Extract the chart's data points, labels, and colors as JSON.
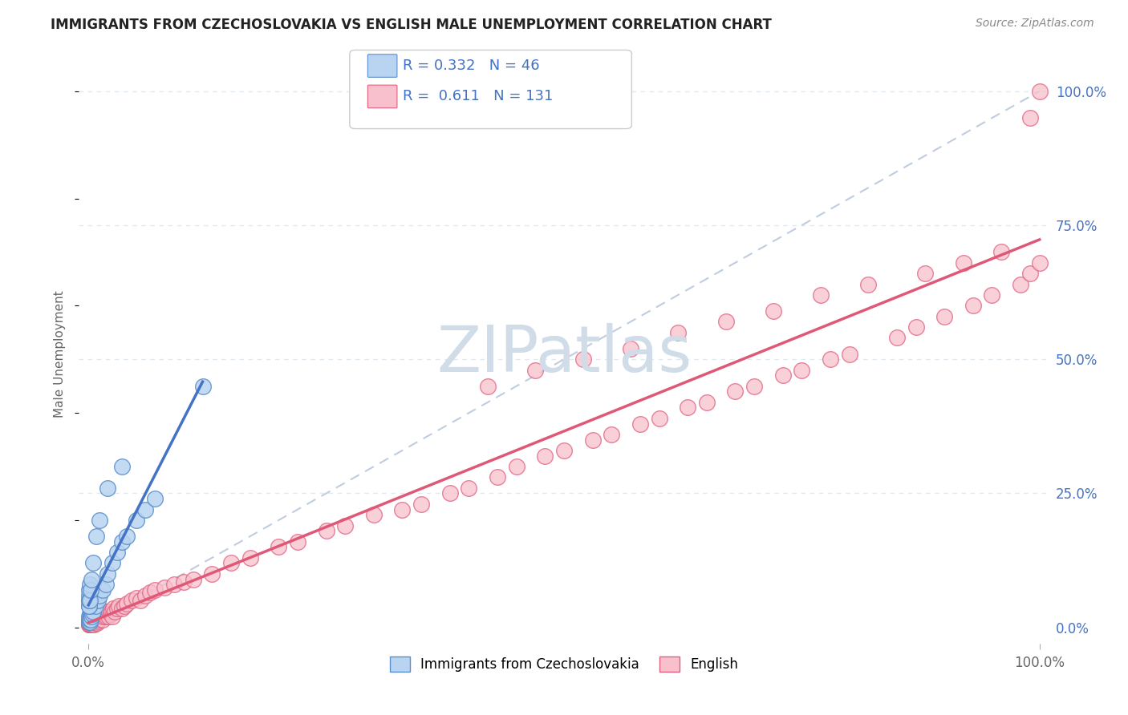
{
  "title": "IMMIGRANTS FROM CZECHOSLOVAKIA VS ENGLISH MALE UNEMPLOYMENT CORRELATION CHART",
  "source": "Source: ZipAtlas.com",
  "ylabel": "Male Unemployment",
  "legend1_label": "Immigrants from Czechoslovakia",
  "legend1_R": "0.332",
  "legend1_N": "46",
  "legend2_label": "English",
  "legend2_R": "0.611",
  "legend2_N": "131",
  "blue_fill": "#b8d4f0",
  "blue_edge": "#5b8fcc",
  "pink_fill": "#f8c0cc",
  "pink_edge": "#e06080",
  "blue_line": "#4472c4",
  "pink_line": "#e05878",
  "diag_color": "#c0cce0",
  "grid_color": "#e0e8f0",
  "watermark_color": "#d0dce8",
  "blue_dots_x": [
    0.05,
    0.08,
    0.1,
    0.12,
    0.15,
    0.18,
    0.2,
    0.22,
    0.25,
    0.28,
    0.3,
    0.35,
    0.4,
    0.45,
    0.5,
    0.6,
    0.7,
    0.8,
    1.0,
    1.2,
    1.5,
    1.8,
    2.0,
    2.5,
    3.0,
    3.5,
    4.0,
    5.0,
    6.0,
    7.0,
    0.05,
    0.06,
    0.07,
    0.08,
    0.09,
    0.1,
    0.12,
    0.15,
    0.2,
    0.3,
    0.5,
    0.8,
    1.2,
    2.0,
    3.5,
    12.0
  ],
  "blue_dots_y": [
    1.0,
    1.5,
    2.0,
    1.0,
    2.5,
    1.5,
    3.0,
    2.0,
    1.5,
    3.5,
    2.0,
    3.0,
    2.5,
    4.0,
    3.0,
    5.0,
    4.0,
    5.0,
    5.0,
    6.0,
    7.0,
    8.0,
    10.0,
    12.0,
    14.0,
    16.0,
    17.0,
    20.0,
    22.0,
    24.0,
    4.0,
    5.0,
    6.0,
    4.0,
    5.0,
    7.0,
    5.0,
    8.0,
    7.0,
    9.0,
    12.0,
    17.0,
    20.0,
    26.0,
    30.0,
    45.0
  ],
  "pink_dots_x": [
    0.05,
    0.06,
    0.07,
    0.08,
    0.09,
    0.1,
    0.1,
    0.12,
    0.12,
    0.13,
    0.15,
    0.15,
    0.16,
    0.18,
    0.18,
    0.2,
    0.2,
    0.22,
    0.23,
    0.25,
    0.25,
    0.28,
    0.3,
    0.3,
    0.32,
    0.35,
    0.35,
    0.38,
    0.4,
    0.4,
    0.42,
    0.45,
    0.48,
    0.5,
    0.5,
    0.52,
    0.55,
    0.58,
    0.6,
    0.65,
    0.7,
    0.72,
    0.75,
    0.78,
    0.8,
    0.85,
    0.9,
    0.95,
    1.0,
    1.1,
    1.2,
    1.3,
    1.4,
    1.5,
    1.6,
    1.7,
    1.8,
    1.9,
    2.0,
    2.1,
    2.2,
    2.3,
    2.4,
    2.5,
    2.6,
    2.8,
    3.0,
    3.2,
    3.5,
    3.8,
    4.0,
    4.5,
    5.0,
    5.5,
    6.0,
    6.5,
    7.0,
    8.0,
    9.0,
    10.0,
    11.0,
    13.0,
    15.0,
    17.0,
    20.0,
    22.0,
    25.0,
    27.0,
    30.0,
    33.0,
    35.0,
    38.0,
    40.0,
    43.0,
    45.0,
    48.0,
    50.0,
    53.0,
    55.0,
    58.0,
    60.0,
    63.0,
    65.0,
    68.0,
    70.0,
    73.0,
    75.0,
    78.0,
    80.0,
    85.0,
    87.0,
    90.0,
    93.0,
    95.0,
    98.0,
    99.0,
    100.0,
    42.0,
    47.0,
    52.0,
    57.0,
    62.0,
    67.0,
    72.0,
    77.0,
    82.0,
    88.0,
    92.0,
    96.0,
    99.0,
    100.0
  ],
  "pink_dots_y": [
    0.5,
    0.8,
    0.6,
    1.0,
    0.7,
    1.2,
    0.5,
    1.0,
    0.8,
    1.5,
    1.0,
    0.8,
    1.2,
    0.5,
    1.5,
    1.0,
    0.8,
    1.2,
    1.5,
    0.5,
    1.0,
    1.5,
    0.8,
    1.2,
    0.5,
    1.0,
    1.5,
    0.8,
    0.5,
    1.0,
    1.5,
    0.8,
    1.2,
    0.5,
    1.0,
    1.5,
    0.8,
    1.2,
    0.5,
    1.5,
    1.0,
    1.5,
    0.8,
    1.2,
    1.5,
    1.0,
    0.8,
    1.5,
    1.2,
    1.5,
    2.0,
    2.5,
    2.0,
    1.5,
    2.0,
    2.5,
    2.0,
    3.0,
    2.5,
    2.0,
    3.0,
    2.5,
    3.0,
    2.0,
    3.5,
    3.0,
    3.5,
    4.0,
    3.5,
    4.0,
    4.5,
    5.0,
    5.5,
    5.0,
    6.0,
    6.5,
    7.0,
    7.5,
    8.0,
    8.5,
    9.0,
    10.0,
    12.0,
    13.0,
    15.0,
    16.0,
    18.0,
    19.0,
    21.0,
    22.0,
    23.0,
    25.0,
    26.0,
    28.0,
    30.0,
    32.0,
    33.0,
    35.0,
    36.0,
    38.0,
    39.0,
    41.0,
    42.0,
    44.0,
    45.0,
    47.0,
    48.0,
    50.0,
    51.0,
    54.0,
    56.0,
    58.0,
    60.0,
    62.0,
    64.0,
    66.0,
    68.0,
    45.0,
    48.0,
    50.0,
    52.0,
    55.0,
    57.0,
    59.0,
    62.0,
    64.0,
    66.0,
    68.0,
    70.0,
    95.0,
    100.0
  ]
}
